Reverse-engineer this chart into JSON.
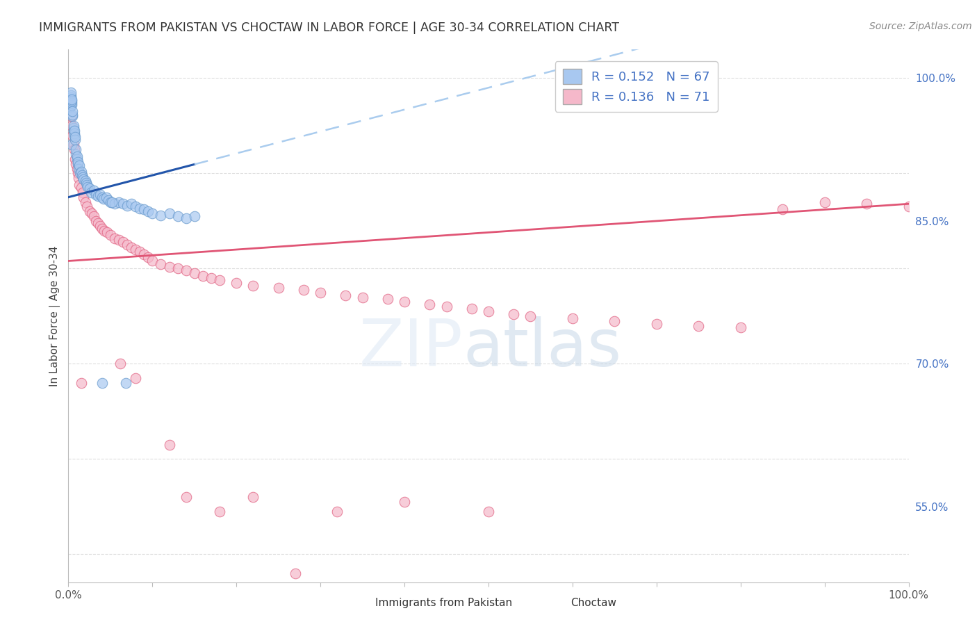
{
  "title": "IMMIGRANTS FROM PAKISTAN VS CHOCTAW IN LABOR FORCE | AGE 30-34 CORRELATION CHART",
  "source": "Source: ZipAtlas.com",
  "ylabel": "In Labor Force | Age 30-34",
  "xlim": [
    0,
    1.0
  ],
  "ylim": [
    0.47,
    1.03
  ],
  "pakistan_color": "#a8c8f0",
  "pakistan_edge_color": "#6699cc",
  "choctaw_color": "#f5b8ca",
  "choctaw_edge_color": "#e06080",
  "pakistan_line_color": "#2255aa",
  "choctaw_line_color": "#e05575",
  "pakistan_dash_color": "#aaccee",
  "watermark_zip": "ZIP",
  "watermark_atlas": "atlas",
  "background_color": "#ffffff",
  "grid_color": "#dddddd",
  "right_tick_color": "#4472c4",
  "title_color": "#333333",
  "source_color": "#888888"
}
